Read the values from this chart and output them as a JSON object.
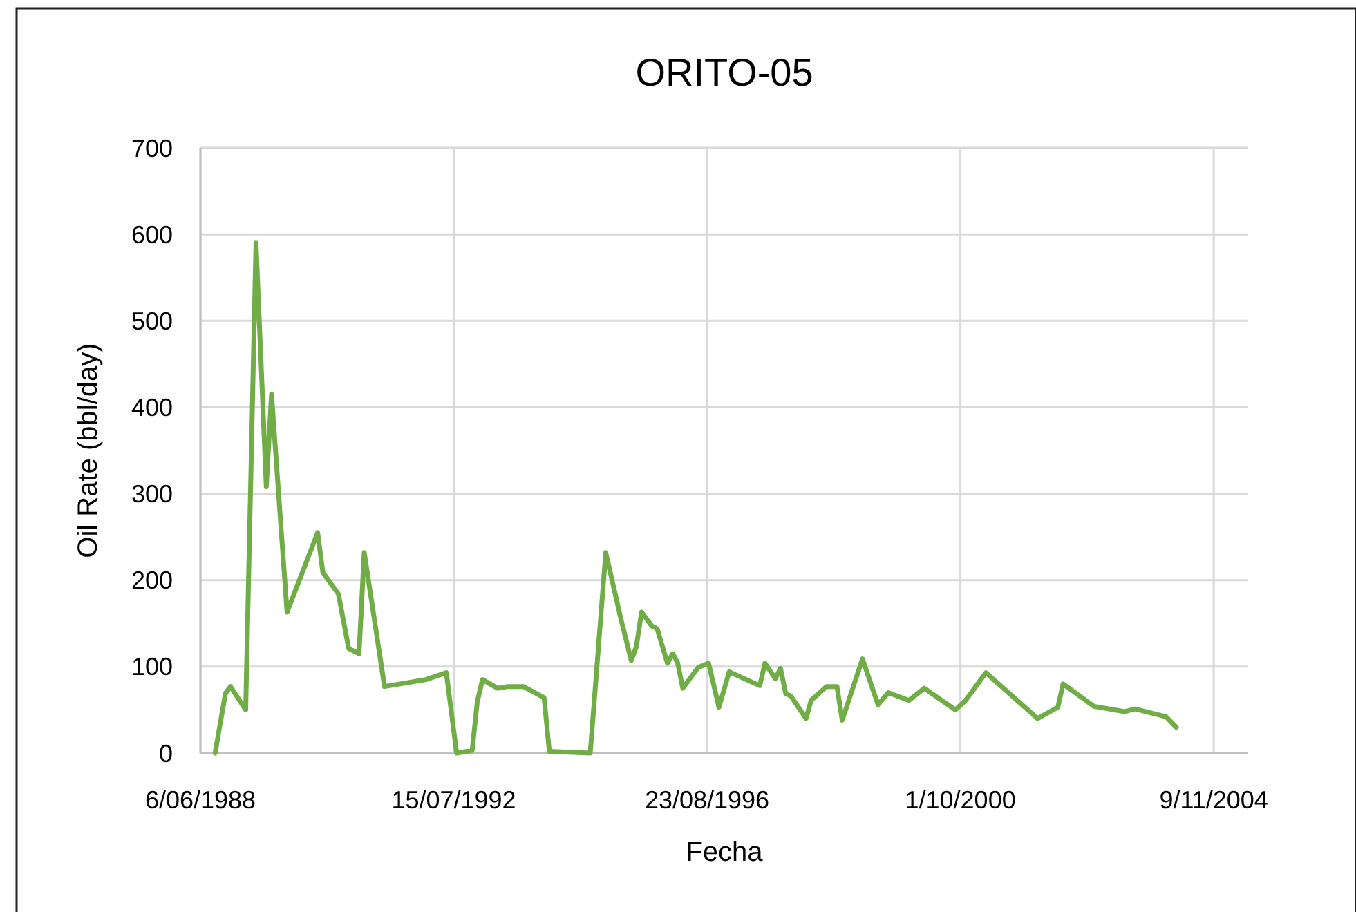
{
  "chart_data": {
    "type": "line",
    "title": "ORITO-05",
    "xlabel": "Fecha",
    "ylabel": "Oil Rate (bbl/day)",
    "x": [
      "1988-09",
      "1988-11",
      "1988-12",
      "1989-03",
      "1989-05",
      "1989-07",
      "1989-08",
      "1989-11",
      "1990-05",
      "1990-06",
      "1990-09",
      "1990-11",
      "1991-01",
      "1991-02",
      "1991-06",
      "1992-02",
      "1992-06",
      "1992-08",
      "1992-11",
      "1992-12",
      "1993-01",
      "1993-04",
      "1993-06",
      "1993-09",
      "1994-01",
      "1994-02",
      "1994-10",
      "1995-01",
      "1995-04",
      "1995-06",
      "1995-07",
      "1995-08",
      "1995-10",
      "1995-11",
      "1996-01",
      "1996-02",
      "1996-03",
      "1996-04",
      "1996-07",
      "1996-09",
      "1996-11",
      "1997-01",
      "1997-07",
      "1997-08",
      "1997-10",
      "1997-11",
      "1997-12",
      "1998-01",
      "1998-04",
      "1998-05",
      "1998-08",
      "1998-10",
      "1998-11",
      "1999-03",
      "1999-06",
      "1999-08",
      "1999-12",
      "2000-03",
      "2000-09",
      "2000-11",
      "2001-03",
      "2002-01",
      "2002-05",
      "2002-06",
      "2002-12",
      "2003-06",
      "2003-08",
      "2004-02",
      "2004-04"
    ],
    "series": [
      {
        "color": "#70ad47",
        "values": [
          0,
          69,
          77,
          50,
          590,
          308,
          415,
          163,
          255,
          209,
          184,
          121,
          115,
          232,
          77,
          85,
          93,
          0,
          3,
          59,
          85,
          75,
          77,
          77,
          64,
          2,
          0,
          232,
          155,
          107,
          123,
          163,
          147,
          144,
          104,
          115,
          105,
          75,
          99,
          104,
          53,
          94,
          78,
          104,
          86,
          98,
          69,
          66,
          40,
          61,
          77,
          77,
          38,
          109,
          56,
          70,
          61,
          75,
          50,
          61,
          93,
          40,
          53,
          80,
          54,
          48,
          51,
          42,
          30
        ]
      }
    ],
    "xlim": [
      "1988-06-06",
      "2005-06-01"
    ],
    "xticks": [
      {
        "value": "1988-06-06",
        "label": "6/06/1988"
      },
      {
        "value": "1992-07-15",
        "label": "15/07/1992"
      },
      {
        "value": "1996-08-23",
        "label": "23/08/1996"
      },
      {
        "value": "2000-10-01",
        "label": "1/10/2000"
      },
      {
        "value": "2004-11-09",
        "label": "9/11/2004"
      }
    ],
    "ylim": [
      0,
      700
    ],
    "yticks": [
      0,
      100,
      200,
      300,
      400,
      500,
      600,
      700
    ],
    "grid": true,
    "line_style": "solid",
    "marker": "none"
  }
}
